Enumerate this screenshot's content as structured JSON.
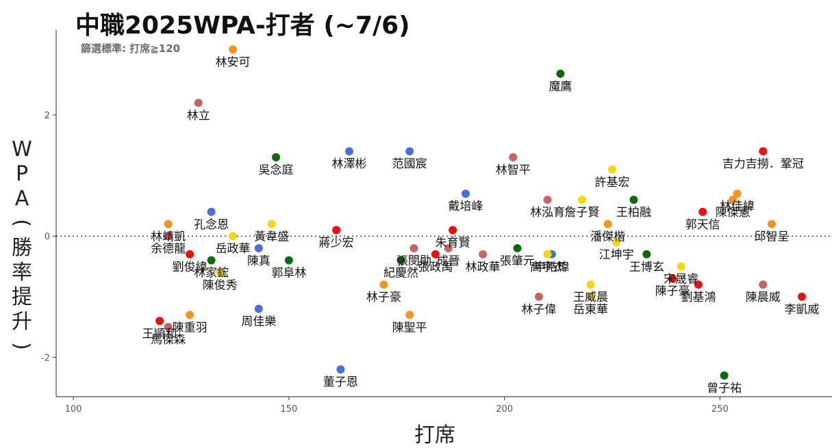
{
  "colors": {
    "red": "#f20d0d",
    "orange": "#f7941d",
    "rose": "#c96464",
    "blue": "#4a6fdc",
    "yellow": "#f8d70f",
    "green": "#0b6b0b"
  },
  "chart_data": {
    "type": "scatter",
    "title": "中職2025WPA-打者 (~7/6)",
    "subtitle": "篩選標準: 打席≧120",
    "xlabel": "打席",
    "ylabel": "WPA(勝率提升)",
    "xlim": [
      96,
      276
    ],
    "ylim": [
      -2.65,
      3.4
    ],
    "xticks": [
      100,
      150,
      200,
      250
    ],
    "yticks": [
      -2,
      0,
      2
    ],
    "reference_line_y": 0,
    "grid": false,
    "points": [
      {
        "name": "林安可",
        "x": 137,
        "y": 3.08,
        "color": "orange"
      },
      {
        "name": "魔鷹",
        "x": 213,
        "y": 2.68,
        "color": "green"
      },
      {
        "name": "林立",
        "x": 129,
        "y": 2.2,
        "color": "rose"
      },
      {
        "name": "吳念庭",
        "x": 147,
        "y": 1.3,
        "color": "green"
      },
      {
        "name": "林澤彬",
        "x": 164,
        "y": 1.4,
        "color": "blue"
      },
      {
        "name": "范國宸",
        "x": 178,
        "y": 1.4,
        "color": "blue"
      },
      {
        "name": "林智平",
        "x": 202,
        "y": 1.3,
        "color": "rose"
      },
      {
        "name": "吉力吉撈．鞏冠",
        "x": 260,
        "y": 1.4,
        "color": "red"
      },
      {
        "name": "許基宏",
        "x": 225,
        "y": 1.1,
        "color": "yellow"
      },
      {
        "name": "林佳緯",
        "x": 254,
        "y": 0.7,
        "color": "orange"
      },
      {
        "name": "陳傑憲",
        "x": 253,
        "y": 0.6,
        "color": "orange"
      },
      {
        "name": "戴培峰",
        "x": 191,
        "y": 0.7,
        "color": "blue"
      },
      {
        "name": "林泓育",
        "x": 210,
        "y": 0.6,
        "color": "rose"
      },
      {
        "name": "詹子賢",
        "x": 218,
        "y": 0.6,
        "color": "yellow"
      },
      {
        "name": "王柏融",
        "x": 230,
        "y": 0.6,
        "color": "green"
      },
      {
        "name": "郭天信",
        "x": 246,
        "y": 0.4,
        "color": "red"
      },
      {
        "name": "林靖凱",
        "x": 122,
        "y": 0.2,
        "color": "orange"
      },
      {
        "name": "孔念恩",
        "x": 132,
        "y": 0.4,
        "color": "blue"
      },
      {
        "name": "朱育賢",
        "x": 188,
        "y": 0.1,
        "color": "red"
      },
      {
        "name": "潘傑楷",
        "x": 224,
        "y": 0.2,
        "color": "orange"
      },
      {
        "name": "邱智呈",
        "x": 262,
        "y": 0.2,
        "color": "orange"
      },
      {
        "name": "余德龍",
        "x": 122,
        "y": 0.0,
        "color": "rose"
      },
      {
        "name": "岳政華",
        "x": 137,
        "y": 0.0,
        "color": "yellow"
      },
      {
        "name": "黃韋盛",
        "x": 146,
        "y": 0.2,
        "color": "yellow"
      },
      {
        "name": "蔣少宏",
        "x": 161,
        "y": 0.1,
        "color": "red"
      },
      {
        "name": "張閔勛",
        "x": 179,
        "y": -0.2,
        "color": "rose"
      },
      {
        "name": "成晉",
        "x": 187,
        "y": -0.2,
        "color": "rose"
      },
      {
        "name": "申皓瑋",
        "x": 211,
        "y": -0.3,
        "color": "blue"
      },
      {
        "name": "江坤宇",
        "x": 226,
        "y": -0.1,
        "color": "yellow"
      },
      {
        "name": "劉俊緯",
        "x": 127,
        "y": -0.3,
        "color": "red"
      },
      {
        "name": "林家鋐",
        "x": 132,
        "y": -0.4,
        "color": "green"
      },
      {
        "name": "陳真",
        "x": 143,
        "y": -0.2,
        "color": "blue"
      },
      {
        "name": "張政禹",
        "x": 184,
        "y": -0.3,
        "color": "red"
      },
      {
        "name": "林政華",
        "x": 195,
        "y": -0.3,
        "color": "rose"
      },
      {
        "name": "張肇元",
        "x": 203,
        "y": -0.2,
        "color": "green"
      },
      {
        "name": "高宇杰",
        "x": 210,
        "y": -0.3,
        "color": "yellow"
      },
      {
        "name": "王博玄",
        "x": 233,
        "y": -0.3,
        "color": "green"
      },
      {
        "name": "宋晟睿",
        "x": 241,
        "y": -0.5,
        "color": "yellow"
      },
      {
        "name": "紀慶然",
        "x": 176,
        "y": -0.4,
        "color": "green"
      },
      {
        "name": "陳俊秀",
        "x": 134,
        "y": -0.6,
        "color": "yellow"
      },
      {
        "name": "郭阜林",
        "x": 150,
        "y": -0.4,
        "color": "green"
      },
      {
        "name": "林子豪",
        "x": 172,
        "y": -0.8,
        "color": "orange"
      },
      {
        "name": "王威晨",
        "x": 220,
        "y": -0.8,
        "color": "yellow"
      },
      {
        "name": "陳子豪",
        "x": 239,
        "y": -0.7,
        "color": "red"
      },
      {
        "name": "劉基鴻",
        "x": 245,
        "y": -0.8,
        "color": "red"
      },
      {
        "name": "陳晨威",
        "x": 260,
        "y": -0.8,
        "color": "rose"
      },
      {
        "name": "林子偉",
        "x": 208,
        "y": -1.0,
        "color": "rose"
      },
      {
        "name": "岳東華",
        "x": 220,
        "y": -1.0,
        "color": "yellow"
      },
      {
        "name": "李凱威",
        "x": 269,
        "y": -1.0,
        "color": "red"
      },
      {
        "name": "周佳樂",
        "x": 143,
        "y": -1.2,
        "color": "blue"
      },
      {
        "name": "王順和",
        "x": 120,
        "y": -1.4,
        "color": "red"
      },
      {
        "name": "陳重羽",
        "x": 127,
        "y": -1.3,
        "color": "orange"
      },
      {
        "name": "馬傑森",
        "x": 122,
        "y": -1.5,
        "color": "rose"
      },
      {
        "name": "陳聖平",
        "x": 178,
        "y": -1.3,
        "color": "orange"
      },
      {
        "name": "董子恩",
        "x": 162,
        "y": -2.2,
        "color": "blue"
      },
      {
        "name": "曾子祐",
        "x": 251,
        "y": -2.3,
        "color": "green"
      }
    ]
  }
}
